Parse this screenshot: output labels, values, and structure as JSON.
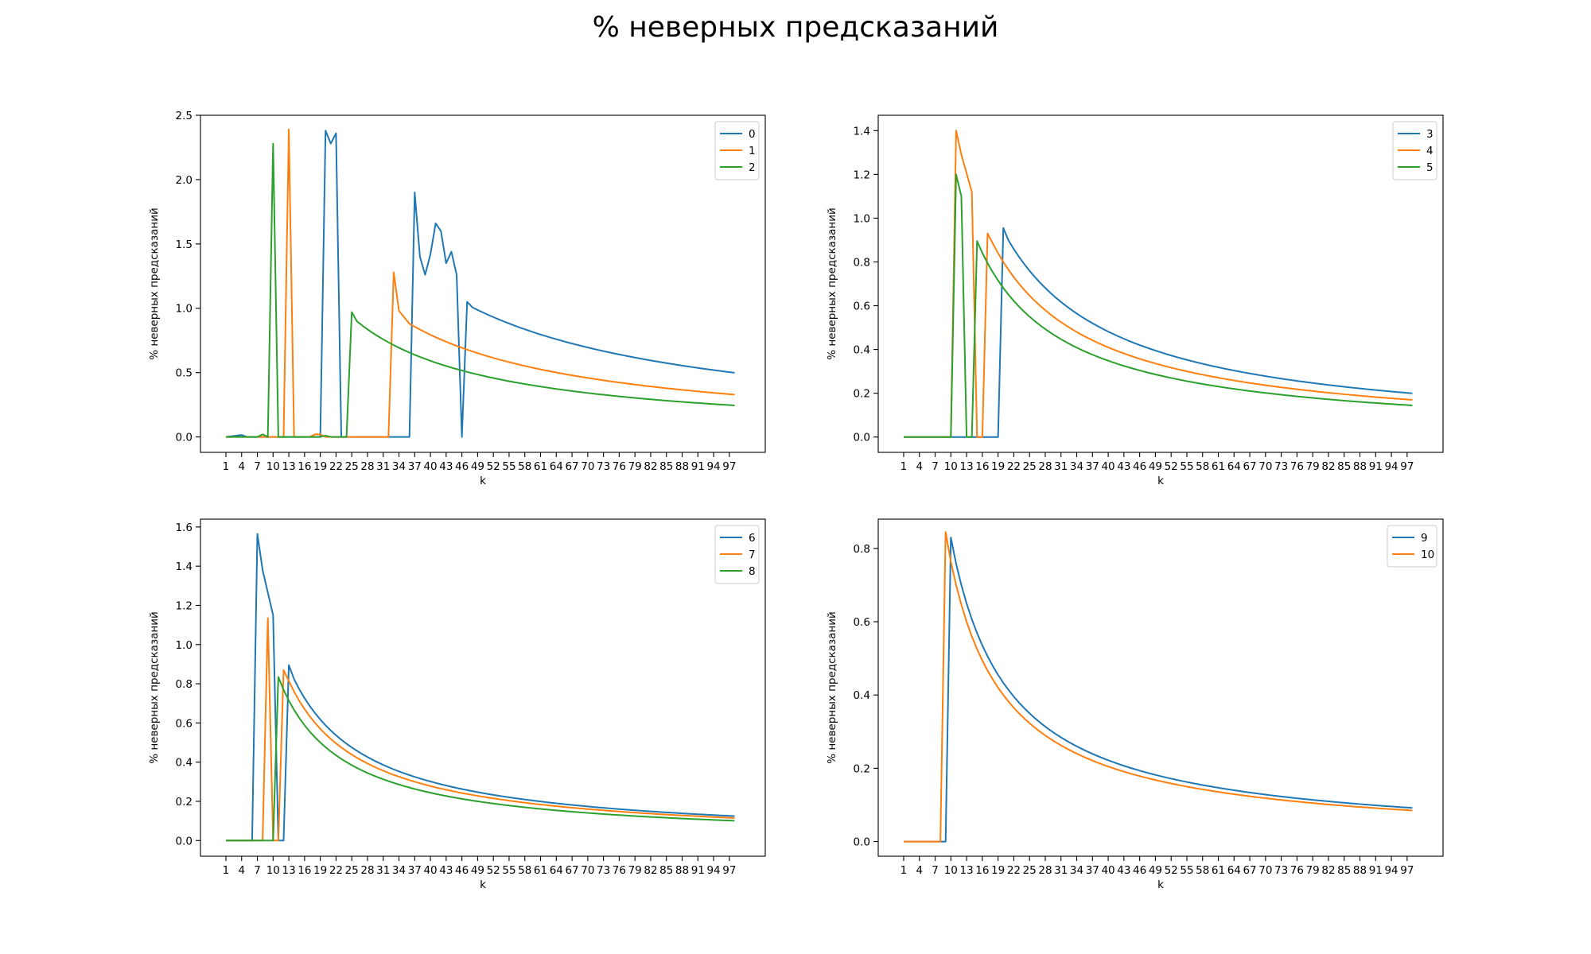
{
  "figure": {
    "suptitle": "% неверных предсказаний",
    "colors": [
      "#1f77b4",
      "#ff7f0e",
      "#2ca02c"
    ]
  },
  "chart_data": [
    {
      "type": "line",
      "xlabel": "k",
      "ylabel": "% неверных предсказаний",
      "xticks": [
        1,
        4,
        7,
        10,
        13,
        16,
        19,
        22,
        25,
        28,
        31,
        34,
        37,
        40,
        43,
        46,
        49,
        52,
        55,
        58,
        61,
        64,
        67,
        70,
        73,
        76,
        79,
        82,
        85,
        88,
        91,
        94,
        97
      ],
      "xlim": [
        -3.85,
        103.85
      ],
      "ylim": [
        -0.12,
        2.5
      ],
      "yticks": [
        "0.0",
        "0.5",
        "1.0",
        "1.5",
        "2.0",
        "2.5"
      ],
      "legend": "top-right",
      "series": [
        {
          "name": "0",
          "color": "#1f77b4",
          "points": [
            [
              1,
              0
            ],
            [
              4,
              0.015
            ],
            [
              5,
              0
            ],
            [
              18,
              0
            ],
            [
              19,
              0
            ],
            [
              20,
              2.38
            ],
            [
              21,
              2.28
            ],
            [
              22,
              2.36
            ],
            [
              23,
              0
            ],
            [
              36,
              0
            ],
            [
              37,
              1.9
            ],
            [
              38,
              1.4
            ],
            [
              39,
              1.26
            ],
            [
              40,
              1.42
            ],
            [
              41,
              1.66
            ],
            [
              42,
              1.6
            ],
            [
              43,
              1.35
            ],
            [
              44,
              1.44
            ],
            [
              45,
              1.26
            ],
            [
              46,
              0
            ],
            [
              47,
              1.05
            ]
          ],
          "decay": {
            "c": 49.35,
            "from": 47,
            "to": 98
          }
        },
        {
          "name": "1",
          "color": "#ff7f0e",
          "points": [
            [
              1,
              0
            ],
            [
              12,
              0
            ],
            [
              13,
              2.39
            ],
            [
              14,
              0
            ],
            [
              17,
              0
            ],
            [
              18,
              0.02
            ],
            [
              19,
              0.02
            ],
            [
              20,
              0
            ],
            [
              32,
              0
            ],
            [
              33,
              1.28
            ],
            [
              34,
              0.98
            ],
            [
              35,
              0.93
            ]
          ],
          "decay": {
            "c": 32.55,
            "from": 35,
            "to": 98
          }
        },
        {
          "name": "2",
          "color": "#2ca02c",
          "points": [
            [
              1,
              0
            ],
            [
              7,
              0
            ],
            [
              8,
              0.02
            ],
            [
              9,
              0
            ],
            [
              10,
              2.28
            ],
            [
              11,
              0
            ],
            [
              19,
              0
            ],
            [
              20,
              0.01
            ],
            [
              21,
              0
            ],
            [
              24,
              0
            ],
            [
              25,
              0.97
            ]
          ],
          "decay": {
            "c": 24.25,
            "from": 25,
            "to": 98
          }
        }
      ]
    },
    {
      "type": "line",
      "xlabel": "k",
      "ylabel": "% неверных предсказаний",
      "xticks": [
        1,
        4,
        7,
        10,
        13,
        16,
        19,
        22,
        25,
        28,
        31,
        34,
        37,
        40,
        43,
        46,
        49,
        52,
        55,
        58,
        61,
        64,
        67,
        70,
        73,
        76,
        79,
        82,
        85,
        88,
        91,
        94,
        97
      ],
      "xlim": [
        -3.85,
        103.85
      ],
      "ylim": [
        -0.07,
        1.47
      ],
      "yticks": [
        "0.0",
        "0.2",
        "0.4",
        "0.6",
        "0.8",
        "1.0",
        "1.2",
        "1.4"
      ],
      "legend": "top-right",
      "series": [
        {
          "name": "3",
          "color": "#1f77b4",
          "points": [
            [
              1,
              0
            ],
            [
              19,
              0
            ],
            [
              20,
              0.955
            ]
          ],
          "decay": {
            "c": 19.75,
            "from": 20,
            "to": 98
          }
        },
        {
          "name": "4",
          "color": "#ff7f0e",
          "points": [
            [
              1,
              0
            ],
            [
              10,
              0
            ],
            [
              11,
              1.4
            ],
            [
              12,
              1.29
            ],
            [
              14,
              1.12
            ],
            [
              15,
              0
            ],
            [
              16,
              0
            ],
            [
              17,
              0.93
            ]
          ],
          "decay": {
            "c": 16.8,
            "from": 17,
            "to": 98
          }
        },
        {
          "name": "5",
          "color": "#2ca02c",
          "points": [
            [
              1,
              0
            ],
            [
              10,
              0
            ],
            [
              11,
              1.2
            ],
            [
              12,
              1.1
            ],
            [
              13,
              0
            ],
            [
              14,
              0
            ],
            [
              15,
              0.895
            ]
          ],
          "decay": {
            "c": 14.3,
            "from": 15,
            "to": 98
          }
        }
      ]
    },
    {
      "type": "line",
      "xlabel": "k",
      "ylabel": "% неверных предсказаний",
      "xticks": [
        1,
        4,
        7,
        10,
        13,
        16,
        19,
        22,
        25,
        28,
        31,
        34,
        37,
        40,
        43,
        46,
        49,
        52,
        55,
        58,
        61,
        64,
        67,
        70,
        73,
        76,
        79,
        82,
        85,
        88,
        91,
        94,
        97
      ],
      "xlim": [
        -3.85,
        103.85
      ],
      "ylim": [
        -0.08,
        1.64
      ],
      "yticks": [
        "0.0",
        "0.2",
        "0.4",
        "0.6",
        "0.8",
        "1.0",
        "1.2",
        "1.4",
        "1.6"
      ],
      "legend": "top-right",
      "series": [
        {
          "name": "6",
          "color": "#1f77b4",
          "points": [
            [
              1,
              0
            ],
            [
              6,
              0
            ],
            [
              7,
              1.565
            ],
            [
              8,
              1.38
            ],
            [
              10,
              1.15
            ],
            [
              11,
              0
            ],
            [
              12,
              0
            ],
            [
              13,
              0.895
            ]
          ],
          "decay": {
            "c": 12.35,
            "from": 13,
            "to": 98
          }
        },
        {
          "name": "7",
          "color": "#ff7f0e",
          "points": [
            [
              1,
              0
            ],
            [
              8,
              0
            ],
            [
              9,
              1.135
            ],
            [
              10,
              0
            ],
            [
              11,
              0
            ],
            [
              12,
              0.87
            ]
          ],
          "decay": {
            "c": 11.4,
            "from": 12,
            "to": 98
          }
        },
        {
          "name": "8",
          "color": "#2ca02c",
          "points": [
            [
              1,
              0
            ],
            [
              10,
              0
            ],
            [
              11,
              0.835
            ]
          ],
          "decay": {
            "c": 10.0,
            "from": 11,
            "to": 98
          }
        }
      ]
    },
    {
      "type": "line",
      "xlabel": "k",
      "ylabel": "% неверных предсказаний",
      "xticks": [
        1,
        4,
        7,
        10,
        13,
        16,
        19,
        22,
        25,
        28,
        31,
        34,
        37,
        40,
        43,
        46,
        49,
        52,
        55,
        58,
        61,
        64,
        67,
        70,
        73,
        76,
        79,
        82,
        85,
        88,
        91,
        94,
        97
      ],
      "xlim": [
        -3.85,
        103.85
      ],
      "ylim": [
        -0.04,
        0.88
      ],
      "yticks": [
        "0.0",
        "0.2",
        "0.4",
        "0.6",
        "0.8"
      ],
      "legend": "top-right",
      "series": [
        {
          "name": "9",
          "color": "#1f77b4",
          "points": [
            [
              1,
              0
            ],
            [
              9,
              0
            ],
            [
              10,
              0.83
            ]
          ],
          "decay": {
            "c": 9.1,
            "from": 10,
            "to": 98
          }
        },
        {
          "name": "10",
          "color": "#ff7f0e",
          "points": [
            [
              1,
              0
            ],
            [
              8,
              0
            ],
            [
              9,
              0.845
            ]
          ],
          "decay": {
            "c": 8.4,
            "from": 9,
            "to": 98
          }
        }
      ]
    }
  ]
}
